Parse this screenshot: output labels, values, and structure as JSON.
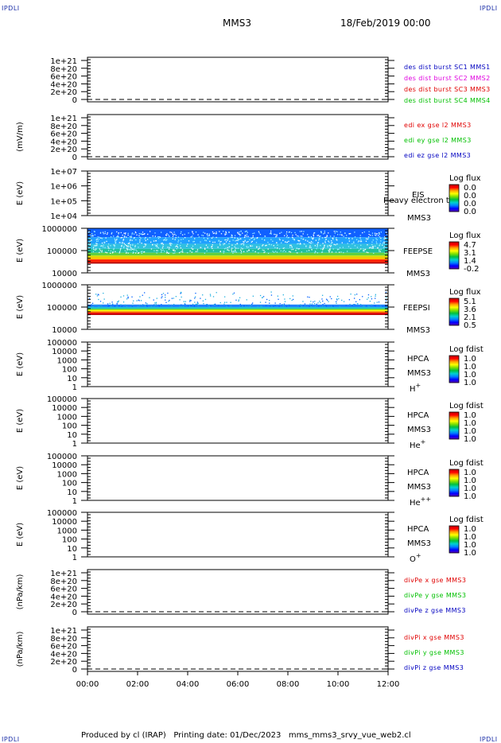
{
  "corner_marks": {
    "tl": "IPDLI",
    "tr": "IPDLI",
    "bl": "IPDLI",
    "br": "IPDLI"
  },
  "header": {
    "spacecraft": "MMS3",
    "date": "18/Feb/2019 00:00"
  },
  "footer": {
    "text": "Produced by cl (IRAP)   Printing date: 01/Dec/2023   mms_mms3_srvy_vue_web2.cl"
  },
  "colors": {
    "red": "#e00000",
    "magenta": "#e000e0",
    "green": "#00c000",
    "blue": "#0000c0",
    "darkred": "#b00000",
    "yellow": "#ffe000",
    "cyan": "#00c0c0",
    "lightblue": "#40a0ff"
  },
  "chart_data": [
    {
      "type": "line",
      "ylabel": "",
      "yticks": [
        "1e+21",
        "8e+20",
        "6e+20",
        "4e+20",
        "2e+20",
        "0"
      ],
      "legend": [
        {
          "text": "des dist burst SC1 MMS1",
          "color": "#0000c0"
        },
        {
          "text": "des dist burst SC2 MMS2",
          "color": "#e000e0"
        },
        {
          "text": "des dist burst SC3 MMS3",
          "color": "#e00000"
        },
        {
          "text": "des dist burst SC4 MMS4",
          "color": "#00c000"
        }
      ],
      "zero_line": true
    },
    {
      "type": "line",
      "ylabel": "(mV/m)",
      "yticks": [
        "1e+21",
        "8e+20",
        "6e+20",
        "4e+20",
        "2e+20",
        "0"
      ],
      "legend": [
        {
          "text": "edi ex gse l2 MMS3",
          "color": "#e00000"
        },
        {
          "text": "edi ey gse l2 MMS3",
          "color": "#00c000"
        },
        {
          "text": "edi ez gse l2 MMS3",
          "color": "#0000c0"
        }
      ],
      "zero_line": true
    },
    {
      "type": "heatmap",
      "ylabel": "E (eV)",
      "yticks": [
        "1e+07",
        "1e+06",
        "1e+05",
        "1e+04"
      ],
      "instrument": [
        "EIS",
        "MMS3"
      ],
      "overlay": "Heavy electron to",
      "colorbar": {
        "title": "Log flux",
        "ticks": [
          "0.0",
          "0.0",
          "0.0",
          "0.0"
        ]
      },
      "fill": "none"
    },
    {
      "type": "heatmap",
      "ylabel": "E (eV)",
      "yticks": [
        "1000000",
        "100000",
        "10000"
      ],
      "instrument": [
        "FEEPSE",
        "MMS3"
      ],
      "colorbar": {
        "title": "Log flux",
        "ticks": [
          "4.7",
          "3.1",
          "1.4",
          "-0.2"
        ]
      },
      "fill": "feepse"
    },
    {
      "type": "heatmap",
      "ylabel": "E (eV)",
      "yticks": [
        "1000000",
        "100000",
        "10000"
      ],
      "instrument": [
        "FEEPSI",
        "MMS3"
      ],
      "colorbar": {
        "title": "Log flux",
        "ticks": [
          "5.1",
          "3.6",
          "2.1",
          "0.5"
        ]
      },
      "fill": "feepsi"
    },
    {
      "type": "heatmap",
      "ylabel": "E (eV)",
      "yticks": [
        "100000",
        "10000",
        "1000",
        "100",
        "10",
        "1"
      ],
      "instrument": [
        "HPCA",
        "MMS3",
        "H+"
      ],
      "colorbar": {
        "title": "Log fdist",
        "ticks": [
          "1.0",
          "1.0",
          "1.0",
          "1.0"
        ]
      },
      "fill": "none"
    },
    {
      "type": "heatmap",
      "ylabel": "E (eV)",
      "yticks": [
        "100000",
        "10000",
        "1000",
        "100",
        "10",
        "1"
      ],
      "instrument": [
        "HPCA",
        "MMS3",
        "He+"
      ],
      "colorbar": {
        "title": "Log fdist",
        "ticks": [
          "1.0",
          "1.0",
          "1.0",
          "1.0"
        ]
      },
      "fill": "none"
    },
    {
      "type": "heatmap",
      "ylabel": "E (eV)",
      "yticks": [
        "100000",
        "10000",
        "1000",
        "100",
        "10",
        "1"
      ],
      "instrument": [
        "HPCA",
        "MMS3",
        "He++"
      ],
      "colorbar": {
        "title": "Log fdist",
        "ticks": [
          "1.0",
          "1.0",
          "1.0",
          "1.0"
        ]
      },
      "fill": "none"
    },
    {
      "type": "heatmap",
      "ylabel": "E (eV)",
      "yticks": [
        "100000",
        "10000",
        "1000",
        "100",
        "10",
        "1"
      ],
      "instrument": [
        "HPCA",
        "MMS3",
        "O+"
      ],
      "colorbar": {
        "title": "Log fdist",
        "ticks": [
          "1.0",
          "1.0",
          "1.0",
          "1.0"
        ]
      },
      "fill": "none"
    },
    {
      "type": "line",
      "ylabel": "(nPa/km)",
      "yticks": [
        "1e+21",
        "8e+20",
        "6e+20",
        "4e+20",
        "2e+20",
        "0"
      ],
      "legend": [
        {
          "text": "divPe x gse MMS3",
          "color": "#e00000"
        },
        {
          "text": "divPe y gse MMS3",
          "color": "#00c000"
        },
        {
          "text": "divPe z gse MMS3",
          "color": "#0000c0"
        }
      ],
      "zero_line": true
    },
    {
      "type": "line",
      "ylabel": "(nPa/km)",
      "yticks": [
        "1e+21",
        "8e+20",
        "6e+20",
        "4e+20",
        "2e+20",
        "0"
      ],
      "legend": [
        {
          "text": "divPi x gse MMS3",
          "color": "#e00000"
        },
        {
          "text": "divPi y gse MMS3",
          "color": "#00c000"
        },
        {
          "text": "divPi z gse MMS3",
          "color": "#0000c0"
        }
      ],
      "zero_line": true
    }
  ],
  "time_axis": {
    "ticks": [
      "00:00",
      "02:00",
      "04:00",
      "06:00",
      "08:00",
      "10:00",
      "12:00"
    ]
  }
}
